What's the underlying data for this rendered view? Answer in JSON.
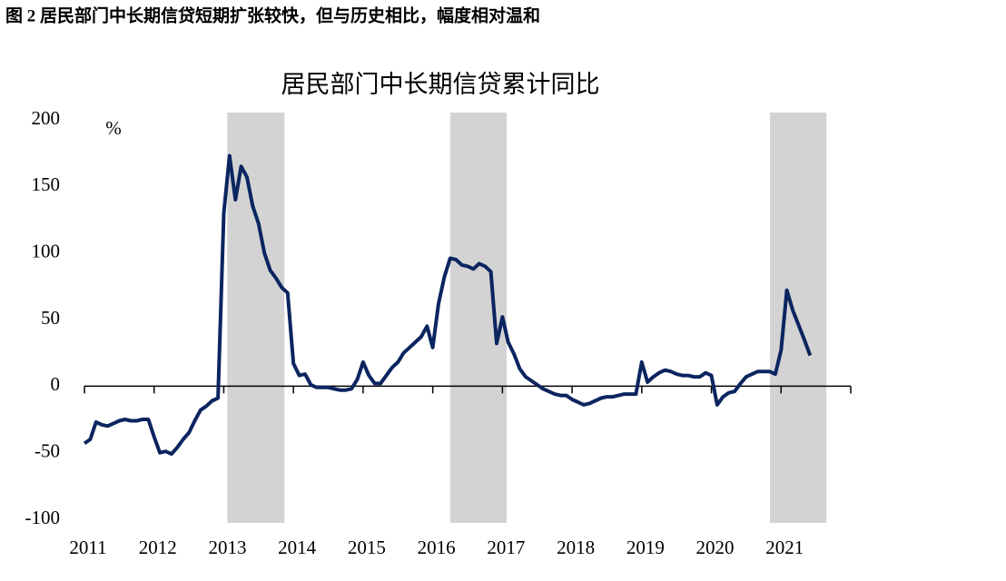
{
  "figure_caption": "图 2 居民部门中长期信贷短期扩张较快，但与历史相比，幅度相对温和",
  "chart_data": {
    "type": "line",
    "title": "居民部门中长期信贷累计同比",
    "y_unit": "%",
    "color": "#0b2560",
    "shade_color": "#d3d3d3",
    "shaded_ranges": [
      [
        2013.05,
        2013.87
      ],
      [
        2016.25,
        2017.06
      ],
      [
        2020.84,
        2021.65
      ]
    ],
    "xlim": [
      2011,
      2022
    ],
    "xticks": [
      2011,
      2012,
      2013,
      2014,
      2015,
      2016,
      2017,
      2018,
      2019,
      2020,
      2021
    ],
    "ylim": [
      -100,
      200
    ],
    "yticks": [
      -100,
      -50,
      0,
      50,
      100,
      150,
      200
    ],
    "x": [
      2011,
      2011.083,
      2011.167,
      2011.25,
      2011.333,
      2011.417,
      2011.5,
      2011.583,
      2011.667,
      2011.75,
      2011.833,
      2011.917,
      2012,
      2012.083,
      2012.167,
      2012.25,
      2012.333,
      2012.417,
      2012.5,
      2012.583,
      2012.667,
      2012.75,
      2012.833,
      2012.917,
      2013,
      2013.083,
      2013.167,
      2013.25,
      2013.333,
      2013.417,
      2013.5,
      2013.583,
      2013.667,
      2013.75,
      2013.833,
      2013.917,
      2014,
      2014.083,
      2014.167,
      2014.25,
      2014.333,
      2014.417,
      2014.5,
      2014.583,
      2014.667,
      2014.75,
      2014.833,
      2014.917,
      2015,
      2015.083,
      2015.167,
      2015.25,
      2015.333,
      2015.417,
      2015.5,
      2015.583,
      2015.667,
      2015.75,
      2015.833,
      2015.917,
      2016,
      2016.083,
      2016.167,
      2016.25,
      2016.333,
      2016.417,
      2016.5,
      2016.583,
      2016.667,
      2016.75,
      2016.833,
      2016.917,
      2017,
      2017.083,
      2017.167,
      2017.25,
      2017.333,
      2017.417,
      2017.5,
      2017.583,
      2017.667,
      2017.75,
      2017.833,
      2017.917,
      2018,
      2018.083,
      2018.167,
      2018.25,
      2018.333,
      2018.417,
      2018.5,
      2018.583,
      2018.667,
      2018.75,
      2018.833,
      2018.917,
      2019,
      2019.083,
      2019.167,
      2019.25,
      2019.333,
      2019.417,
      2019.5,
      2019.583,
      2019.667,
      2019.75,
      2019.833,
      2019.917,
      2020,
      2020.083,
      2020.167,
      2020.25,
      2020.333,
      2020.417,
      2020.5,
      2020.583,
      2020.667,
      2020.75,
      2020.833,
      2020.917,
      2021,
      2021.083,
      2021.167,
      2021.25,
      2021.333,
      2021.417
    ],
    "values": [
      -43,
      -40,
      -27,
      -29,
      -30,
      -28,
      -26,
      -25,
      -26,
      -26,
      -25,
      -25,
      -38,
      -50,
      -49,
      -51,
      -46,
      -40,
      -35,
      -26,
      -18,
      -15,
      -11,
      -9,
      130,
      173,
      140,
      165,
      157,
      135,
      122,
      100,
      87,
      81,
      74,
      70,
      17,
      8,
      9,
      1,
      -1,
      -1,
      -1,
      -2,
      -3,
      -3,
      -2,
      5,
      18,
      8,
      2,
      2,
      8,
      14,
      18,
      25,
      29,
      33,
      37,
      45,
      29,
      62,
      82,
      96,
      95,
      91,
      90,
      88,
      92,
      90,
      86,
      32,
      52,
      33,
      24,
      13,
      7,
      4,
      1,
      -2,
      -4,
      -6,
      -7,
      -7,
      -10,
      -12,
      -14,
      -13,
      -11,
      -9,
      -8,
      -8,
      -7,
      -6,
      -6,
      -6,
      18,
      3,
      7,
      10,
      12,
      11,
      9,
      8,
      8,
      7,
      7,
      10,
      8,
      -14,
      -8,
      -5,
      -4,
      2,
      7,
      9,
      11,
      11,
      11,
      9,
      27,
      72,
      57,
      46,
      35,
      23
    ]
  }
}
